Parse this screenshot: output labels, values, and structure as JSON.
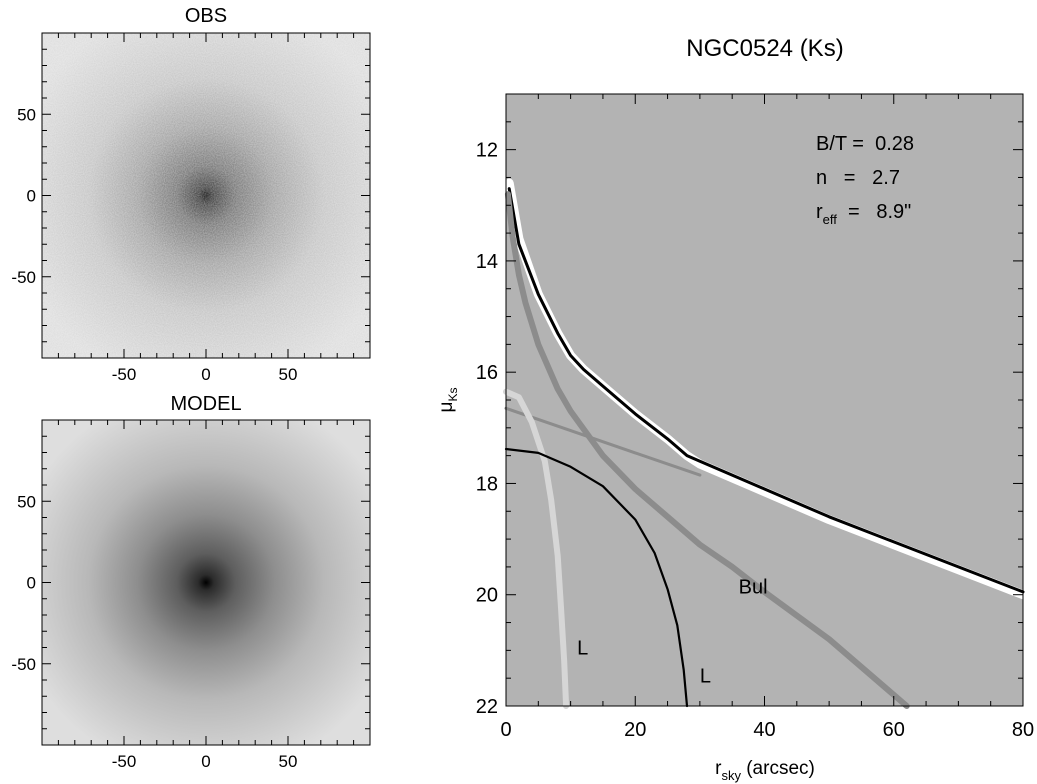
{
  "panels": {
    "obs": {
      "title": "OBS",
      "x_ticks": [
        -50,
        0,
        50
      ],
      "y_ticks": [
        50,
        0,
        -50
      ],
      "range": [
        -100,
        100
      ]
    },
    "model": {
      "title": "MODEL",
      "x_ticks": [
        -50,
        0,
        50
      ],
      "y_ticks": [
        50,
        0,
        -50
      ],
      "range": [
        -100,
        100
      ]
    }
  },
  "chart_data": {
    "type": "line",
    "title": "NGC0524 (Ks)",
    "xlabel_main": "r",
    "xlabel_sub": "sky",
    "xlabel_unit": " (arcsec)",
    "ylabel_main": "μ",
    "ylabel_sub": "Ks",
    "xlim": [
      0,
      80
    ],
    "ylim": [
      22,
      11
    ],
    "x_ticks": [
      0,
      20,
      40,
      60,
      80
    ],
    "y_ticks": [
      12,
      14,
      16,
      18,
      20,
      22
    ],
    "y_inverted": true,
    "background_color": "#b3b3b3",
    "annotations": {
      "bt": "B/T =  0.28",
      "n": "n   =   2.7",
      "reff_main": "r",
      "reff_sub": "eff",
      "reff_value": "  =   8.9\""
    },
    "series": [
      {
        "kind": "observed-scatter",
        "color": "#ffffff",
        "x": [
          0.5,
          2,
          5,
          8,
          10,
          12,
          15,
          20,
          25,
          28,
          30,
          35,
          40,
          50,
          60,
          70,
          80
        ],
        "y": [
          12.6,
          13.6,
          14.6,
          15.3,
          15.7,
          15.95,
          16.25,
          16.75,
          17.2,
          17.5,
          17.65,
          17.9,
          18.15,
          18.65,
          19.1,
          19.55,
          20.0
        ]
      },
      {
        "kind": "total-model",
        "color": "#000000",
        "x": [
          0.5,
          2,
          5,
          8,
          10,
          12,
          15,
          20,
          25,
          28,
          30,
          35,
          40,
          50,
          60,
          70,
          80
        ],
        "y": [
          12.7,
          13.7,
          14.6,
          15.3,
          15.7,
          15.95,
          16.25,
          16.75,
          17.2,
          17.5,
          17.6,
          17.85,
          18.1,
          18.6,
          19.05,
          19.5,
          19.95
        ]
      },
      {
        "name": "Bul",
        "kind": "bulge",
        "color": "#8c8c8c",
        "x": [
          0.3,
          1,
          2,
          3,
          5,
          8,
          10,
          15,
          20,
          25,
          30,
          35,
          40,
          50,
          60,
          62
        ],
        "y": [
          12.8,
          13.55,
          14.25,
          14.75,
          15.5,
          16.3,
          16.7,
          17.5,
          18.1,
          18.6,
          19.1,
          19.5,
          19.95,
          20.8,
          21.8,
          22.0
        ]
      },
      {
        "kind": "disk-line",
        "color": "#8c8c8c",
        "x": [
          0,
          10,
          20,
          30
        ],
        "y": [
          16.65,
          17.05,
          17.45,
          17.85
        ]
      },
      {
        "name": "L",
        "kind": "lens-inner",
        "color": "#d6d6d6",
        "x": [
          0,
          2,
          4,
          6,
          7,
          8,
          8.5,
          9,
          9.3
        ],
        "y": [
          16.35,
          16.45,
          16.9,
          17.6,
          18.3,
          19.3,
          20.2,
          21.2,
          22.0
        ]
      },
      {
        "name": "L",
        "kind": "lens-outer",
        "color": "#000000",
        "x": [
          0,
          5,
          10,
          15,
          20,
          23,
          25,
          26.5,
          27.5,
          28
        ],
        "y": [
          17.38,
          17.45,
          17.7,
          18.05,
          18.65,
          19.25,
          19.9,
          20.55,
          21.35,
          22.0
        ]
      }
    ],
    "labels": [
      {
        "text": "Bul",
        "x": 36,
        "y": 19.85
      },
      {
        "text": "L",
        "x": 11,
        "y": 20.95
      },
      {
        "text": "L",
        "x": 30,
        "y": 21.45
      }
    ]
  }
}
